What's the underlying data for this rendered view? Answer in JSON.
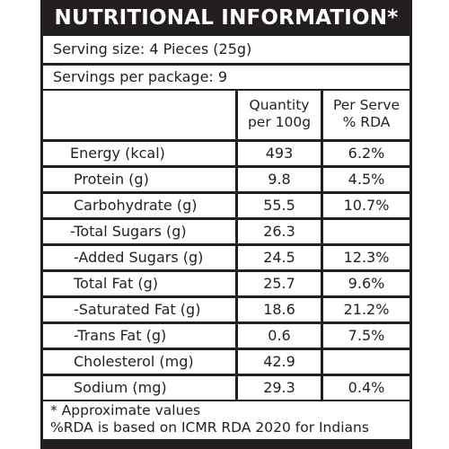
{
  "title": "NUTRITIONAL INFORMATION*",
  "serving_size": "Serving size: 4 Pieces (25g)",
  "servings_per_package": "Servings per package: 9",
  "columns": {
    "quantity_line1": "Quantity",
    "quantity_line2": "per 100g",
    "rda_line1": "Per Serve",
    "rda_line2": "% RDA"
  },
  "rows": [
    {
      "nutrient": "Energy (kcal)",
      "quantity": "493",
      "rda": "6.2%"
    },
    {
      "nutrient": "Protein (g)",
      "quantity": "9.8",
      "rda": "4.5%"
    },
    {
      "nutrient": "Carbohydrate (g)",
      "quantity": "55.5",
      "rda": "10.7%"
    },
    {
      "nutrient": "-Total Sugars (g)",
      "quantity": "26.3",
      "rda": ""
    },
    {
      "nutrient": "-Added Sugars (g)",
      "quantity": "24.5",
      "rda": "12.3%"
    },
    {
      "nutrient": "Total Fat (g)",
      "quantity": "25.7",
      "rda": "9.6%"
    },
    {
      "nutrient": "-Saturated Fat (g)",
      "quantity": "18.6",
      "rda": "21.2%"
    },
    {
      "nutrient": "-Trans Fat (g)",
      "quantity": "0.6",
      "rda": "7.5%"
    },
    {
      "nutrient": "Cholesterol (mg)",
      "quantity": "42.9",
      "rda": ""
    },
    {
      "nutrient": "Sodium (mg)",
      "quantity": "29.3",
      "rda": "0.4%"
    }
  ],
  "footnotes": {
    "approximate": "* Approximate values",
    "rda_basis": "%RDA is based on ICMR RDA 2020 for Indians"
  }
}
